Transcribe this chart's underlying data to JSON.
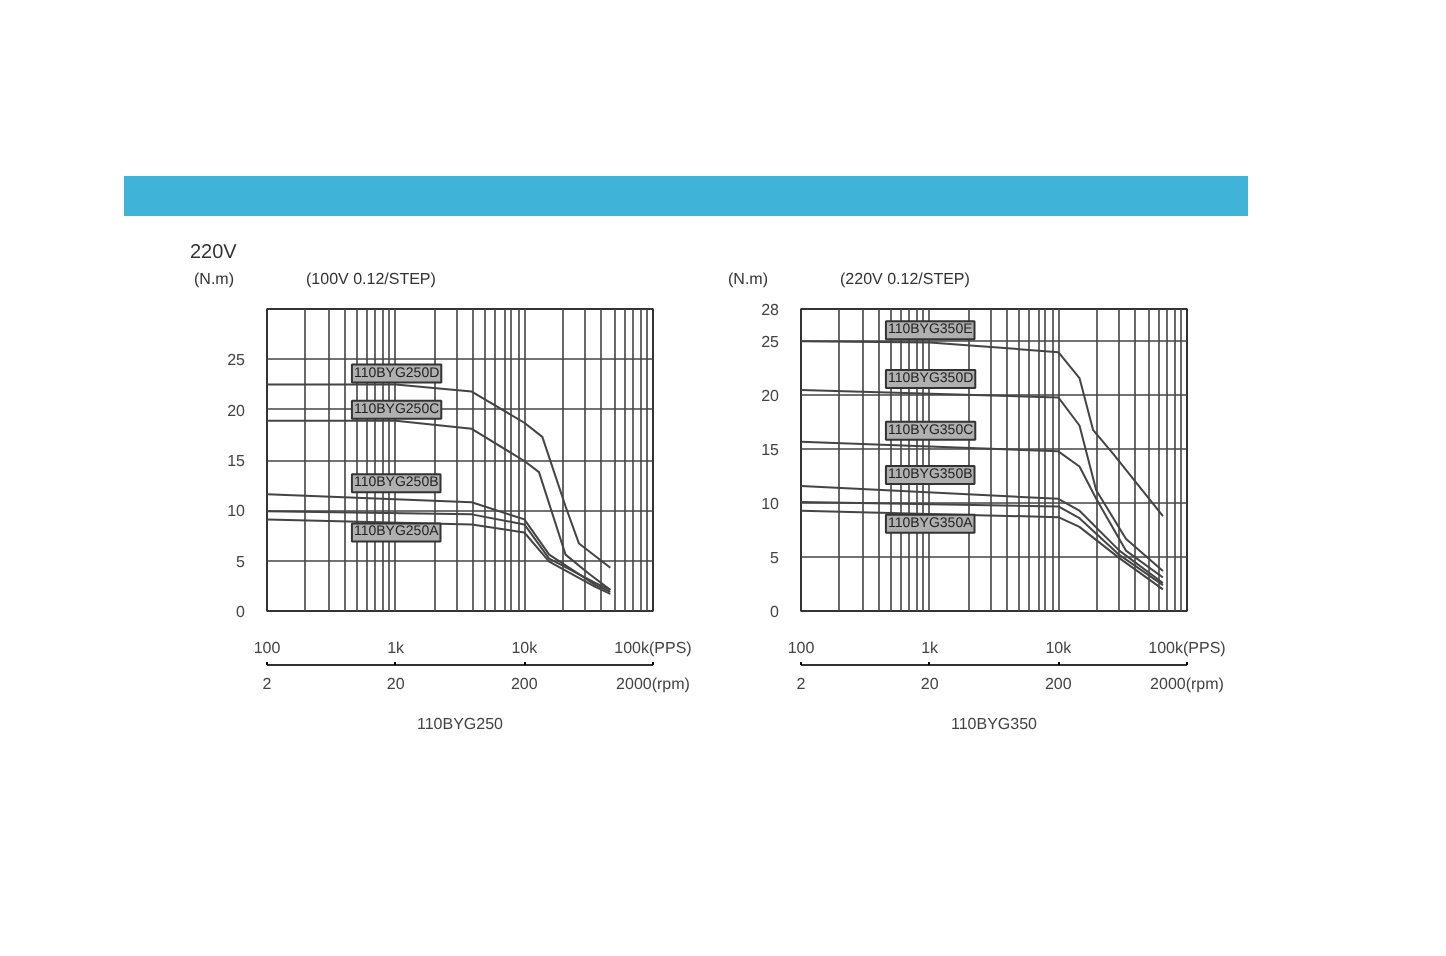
{
  "chart_data": [
    {
      "type": "line",
      "title": "220V",
      "subtitle": "(100V 0.12/STEP)",
      "xlabel": "110BYG250",
      "ylabel": "(N.m)",
      "log": "x",
      "grid": true,
      "marker": "none",
      "line_style": "solid",
      "xlim": [
        100,
        100000
      ],
      "ylim": [
        0,
        30
      ],
      "xticks": [
        100,
        {
          "value": 200,
          "label": null
        },
        {
          "value": 300,
          "label": null
        },
        {
          "value": 400,
          "label": null
        },
        {
          "value": 500,
          "label": null
        },
        {
          "value": 600,
          "label": null
        },
        {
          "value": 700,
          "label": null
        },
        {
          "value": 800,
          "label": null
        },
        {
          "value": 900,
          "label": null
        },
        {
          "value": 1000,
          "label": "1k"
        },
        {
          "value": 2000,
          "label": null
        },
        {
          "value": 3000,
          "label": null
        },
        {
          "value": 4000,
          "label": null
        },
        {
          "value": 5000,
          "label": null
        },
        {
          "value": 6000,
          "label": null
        },
        {
          "value": 7000,
          "label": null
        },
        {
          "value": 8000,
          "label": null
        },
        {
          "value": 9000,
          "label": null
        },
        {
          "value": 10000,
          "label": "10k"
        },
        {
          "value": 20000,
          "label": null
        },
        {
          "value": 30000,
          "label": null
        },
        {
          "value": 40000,
          "label": null
        },
        {
          "value": 50000,
          "label": null
        },
        {
          "value": 60000,
          "label": null
        },
        {
          "value": 70000,
          "label": null
        },
        {
          "value": 80000,
          "label": null
        },
        {
          "value": 90000,
          "label": null
        },
        {
          "value": 100000,
          "label": "100k(PPS)"
        }
      ],
      "yticks": [
        0,
        5,
        10,
        15,
        20,
        25
      ],
      "annotations": [
        "2",
        "20",
        "200",
        "2000(rpm)"
      ],
      "series": [
        {
          "name": "110BYG250D",
          "color": "#444444",
          "x": [
            100,
            1000,
            3900,
            10000,
            13800,
            20900,
            26600,
            46600
          ],
          "values": [
            22.5,
            22.5,
            21.8,
            18.7,
            17.3,
            10.4,
            6.7,
            4.3
          ]
        },
        {
          "name": "110BYG250C",
          "color": "#444444",
          "x": [
            100,
            1000,
            3900,
            10000,
            13000,
            20900,
            31800,
            46600
          ],
          "values": [
            18.9,
            18.9,
            18.1,
            14.9,
            13.8,
            5.6,
            3.7,
            2.1
          ]
        },
        {
          "name": "110BYG250B",
          "color": "#444444",
          "x": [
            100,
            3900,
            10000,
            15600,
            35600,
            46600
          ],
          "values": [
            11.6,
            10.8,
            9.1,
            5.6,
            2.6,
            1.9
          ]
        },
        {
          "color": "#444444",
          "x": [
            100,
            3900,
            10000,
            15600,
            35600,
            46600
          ],
          "values": [
            9.9,
            9.6,
            8.6,
            5.2,
            2.8,
            2.1
          ]
        },
        {
          "name": "110BYG250A",
          "color": "#444444",
          "x": [
            100,
            3900,
            10000,
            15600,
            35600,
            46600
          ],
          "values": [
            9.1,
            8.6,
            7.8,
            4.9,
            2.4,
            1.7
          ]
        }
      ]
    },
    {
      "type": "line",
      "subtitle": "(220V 0.12/STEP)",
      "xlabel": "110BYG350",
      "ylabel": "(N.m)",
      "log": "x",
      "grid": true,
      "marker": "none",
      "line_style": "solid",
      "xlim": [
        100,
        100000
      ],
      "ylim": [
        0,
        28
      ],
      "xticks": [
        100,
        {
          "value": 200,
          "label": null
        },
        {
          "value": 300,
          "label": null
        },
        {
          "value": 400,
          "label": null
        },
        {
          "value": 500,
          "label": null
        },
        {
          "value": 600,
          "label": null
        },
        {
          "value": 700,
          "label": null
        },
        {
          "value": 800,
          "label": null
        },
        {
          "value": 900,
          "label": null
        },
        {
          "value": 1000,
          "label": "1k"
        },
        {
          "value": 2000,
          "label": null
        },
        {
          "value": 3000,
          "label": null
        },
        {
          "value": 4000,
          "label": null
        },
        {
          "value": 5000,
          "label": null
        },
        {
          "value": 6000,
          "label": null
        },
        {
          "value": 7000,
          "label": null
        },
        {
          "value": 8000,
          "label": null
        },
        {
          "value": 9000,
          "label": null
        },
        {
          "value": 10000,
          "label": "10k"
        },
        {
          "value": 20000,
          "label": null
        },
        {
          "value": 30000,
          "label": null
        },
        {
          "value": 40000,
          "label": null
        },
        {
          "value": 50000,
          "label": null
        },
        {
          "value": 60000,
          "label": null
        },
        {
          "value": 70000,
          "label": null
        },
        {
          "value": 80000,
          "label": null
        },
        {
          "value": 90000,
          "label": null
        },
        {
          "value": 100000,
          "label": "100k(PPS)"
        }
      ],
      "yticks": [
        0,
        5,
        10,
        15,
        20,
        25,
        28
      ],
      "annotations": [
        "2",
        "20",
        "200",
        "2000(rpm)"
      ],
      "series": [
        {
          "name": "110BYG350E",
          "color": "#444444",
          "x": [
            100,
            1000,
            10000,
            14600,
            18600,
            26600,
            65000
          ],
          "values": [
            25.0,
            24.9,
            24.0,
            21.6,
            16.8,
            14.6,
            8.8
          ]
        },
        {
          "name": "110BYG350D",
          "color": "#444444",
          "x": [
            100,
            10000,
            14600,
            19700,
            33500,
            65000
          ],
          "values": [
            20.5,
            19.8,
            17.2,
            11.2,
            6.7,
            3.7
          ]
        },
        {
          "name": "110BYG350C",
          "color": "#444444",
          "x": [
            100,
            10000,
            14600,
            19700,
            33500,
            65000
          ],
          "values": [
            15.7,
            14.8,
            13.4,
            10.4,
            5.6,
            3.1
          ]
        },
        {
          "name": "110BYG350B",
          "color": "#444444",
          "x": [
            100,
            10000,
            14600,
            29800,
            65000
          ],
          "values": [
            11.6,
            10.4,
            9.3,
            5.6,
            2.6
          ]
        },
        {
          "color": "#444444",
          "x": [
            100,
            10000,
            14600,
            29800,
            65000
          ],
          "values": [
            10.1,
            9.7,
            8.6,
            5.2,
            2.4
          ]
        },
        {
          "name": "110BYG350A",
          "color": "#444444",
          "x": [
            100,
            10000,
            14600,
            29800,
            65000
          ],
          "values": [
            9.3,
            8.7,
            7.8,
            4.9,
            2.0
          ]
        }
      ]
    }
  ]
}
